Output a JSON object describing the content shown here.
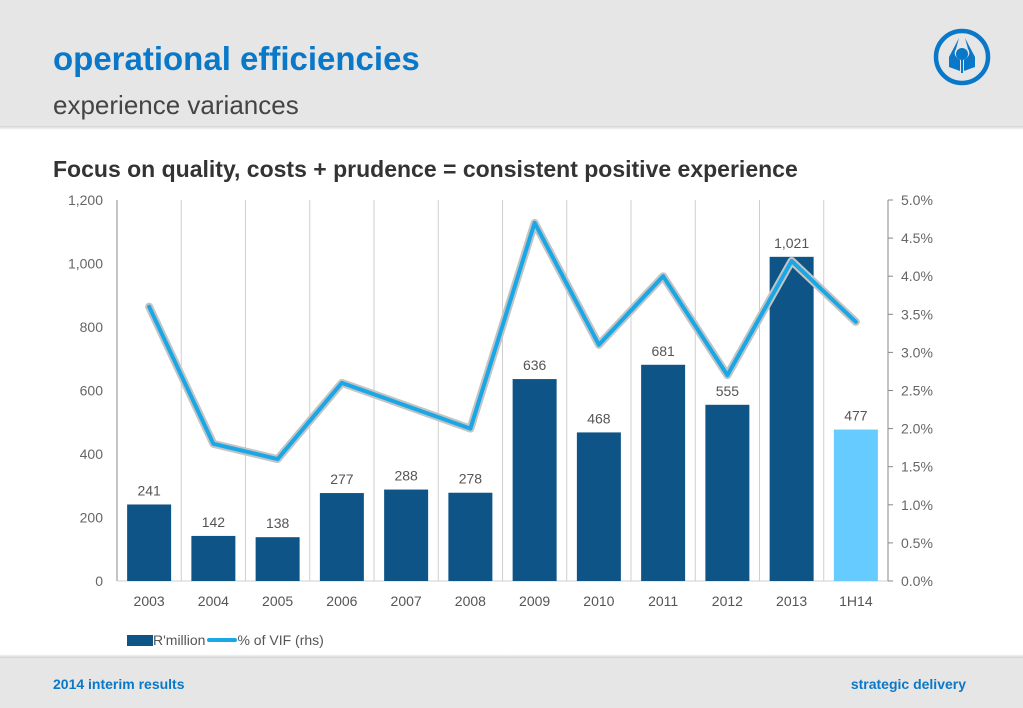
{
  "header": {
    "title": "operational efficiencies",
    "subtitle": "experience variances",
    "logo_icon": "sanlam-logo-icon"
  },
  "headline": "Focus on quality, costs + prudence = consistent positive experience",
  "footer": {
    "left": "2014 interim results",
    "right": "strategic delivery"
  },
  "colors": {
    "brand_blue": "#0a78c8",
    "bar_dark": "#0e5486",
    "bar_highlight": "#66ccff",
    "line": "#1aa7e6"
  },
  "chart_data": {
    "type": "bar",
    "title": "Focus on quality, costs + prudence = consistent positive experience",
    "categories": [
      "2003",
      "2004",
      "2005",
      "2006",
      "2007",
      "2008",
      "2009",
      "2010",
      "2011",
      "2012",
      "2013",
      "1H14"
    ],
    "series": [
      {
        "name": "R'million",
        "type": "bar",
        "axis": "left",
        "values": [
          241,
          142,
          138,
          277,
          288,
          278,
          636,
          468,
          681,
          555,
          1021,
          477
        ],
        "labels": [
          "241",
          "142",
          "138",
          "277",
          "288",
          "278",
          "636",
          "468",
          "681",
          "555",
          "1,021",
          "477"
        ],
        "highlight_index": 11
      },
      {
        "name": "% of VIF (rhs)",
        "type": "line",
        "axis": "right",
        "values": [
          3.6,
          1.8,
          1.6,
          2.6,
          2.3,
          2.0,
          4.7,
          3.1,
          4.0,
          2.7,
          4.2,
          3.4
        ]
      }
    ],
    "y_left": {
      "min": 0,
      "max": 1200,
      "ticks": [
        0,
        200,
        400,
        600,
        800,
        1000,
        1200
      ],
      "tick_labels": [
        "0",
        "200",
        "400",
        "600",
        "800",
        "1,000",
        "1,200"
      ]
    },
    "y_right": {
      "min": 0,
      "max": 5,
      "ticks": [
        0,
        0.5,
        1,
        1.5,
        2,
        2.5,
        3,
        3.5,
        4,
        4.5,
        5
      ],
      "tick_labels": [
        "0.0%",
        "0.5%",
        "1.0%",
        "1.5%",
        "2.0%",
        "2.5%",
        "3.0%",
        "3.5%",
        "4.0%",
        "4.5%",
        "5.0%"
      ]
    },
    "xlabel": "",
    "ylabel": "",
    "grid": "vertical",
    "legend": {
      "position": "bottom-left",
      "entries": [
        "R'million",
        "% of VIF (rhs)"
      ]
    }
  }
}
